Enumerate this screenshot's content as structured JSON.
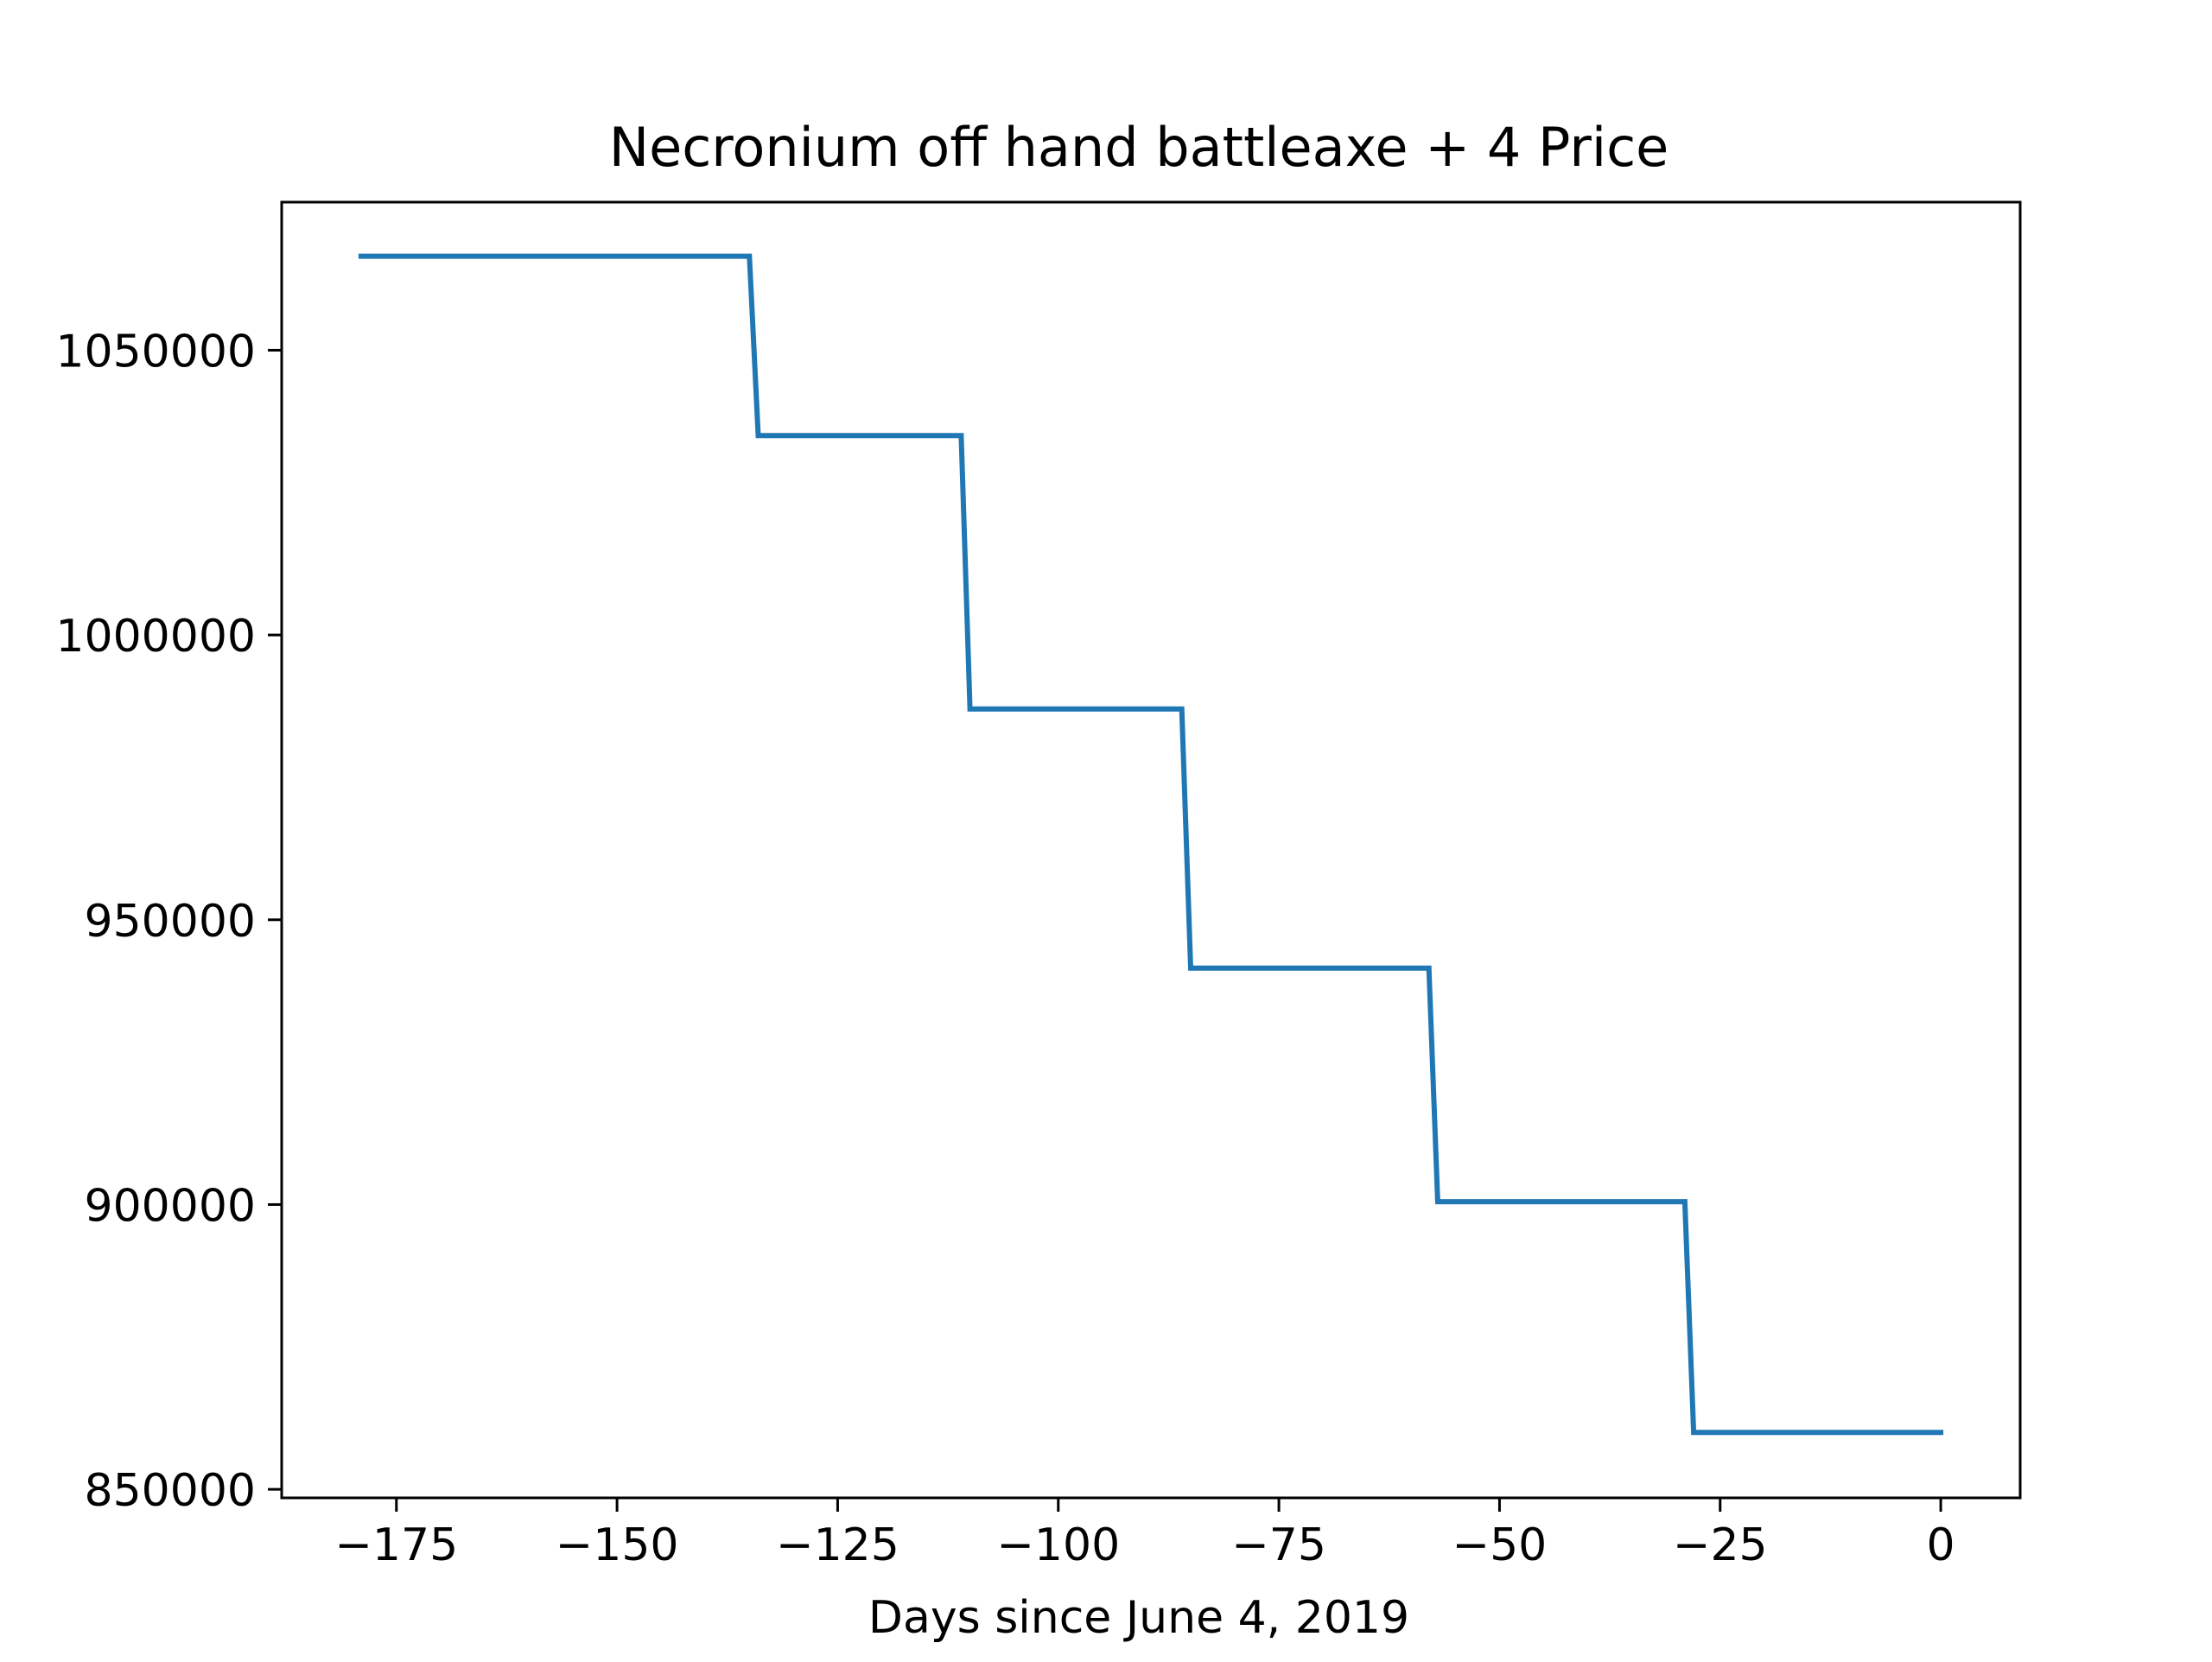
{
  "chart_data": {
    "type": "line",
    "title": "Necronium off hand battleaxe + 4 Price",
    "xlabel": "Days since June 4, 2019",
    "ylabel": "",
    "xlim": [
      -188,
      9
    ],
    "ylim": [
      848500,
      1076000
    ],
    "xticks": [
      -175,
      -150,
      -125,
      -100,
      -75,
      -50,
      -25,
      0
    ],
    "xtick_labels": [
      "−175",
      "−150",
      "−125",
      "−100",
      "−75",
      "−50",
      "−25",
      "0"
    ],
    "yticks": [
      850000,
      900000,
      950000,
      1000000,
      1050000
    ],
    "ytick_labels": [
      "850000",
      "900000",
      "950000",
      "1000000",
      "1050000"
    ],
    "grid": false,
    "legend": "none",
    "series": [
      {
        "color": "#1f77b4",
        "x": [
          -179,
          -135,
          -134,
          -111,
          -110,
          -86,
          -85,
          -58,
          -57,
          -29,
          -28,
          0
        ],
        "y": [
          1066500,
          1066500,
          1035000,
          1035000,
          987000,
          987000,
          941500,
          941500,
          900500,
          900500,
          860000,
          860000
        ]
      }
    ]
  }
}
